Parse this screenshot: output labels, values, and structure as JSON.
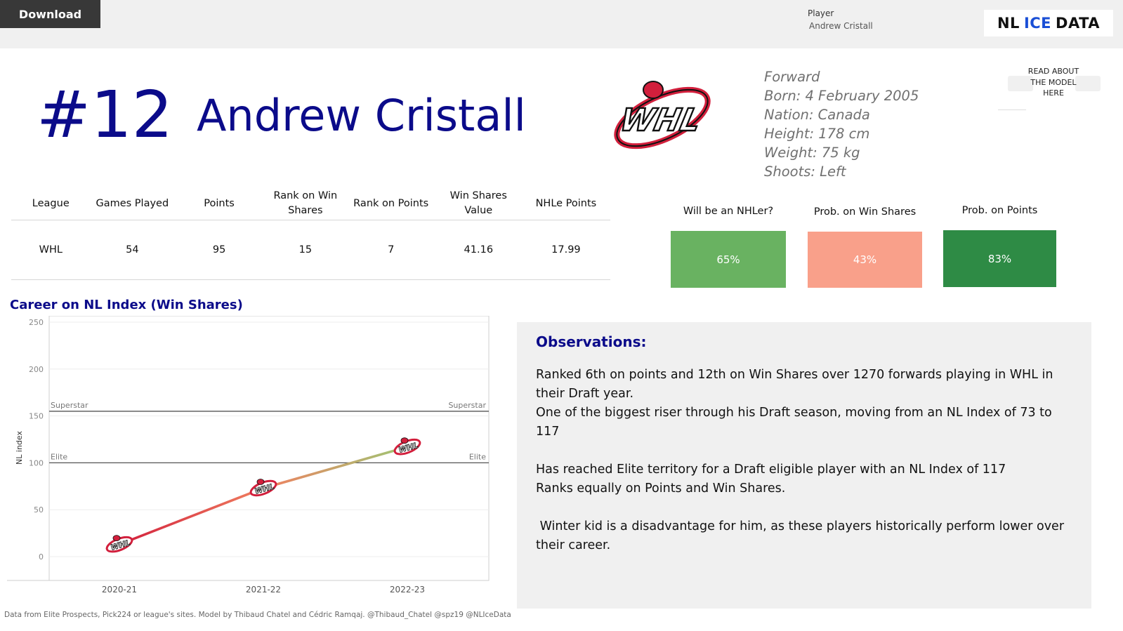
{
  "toolbar": {
    "download_label": "Download"
  },
  "filter": {
    "label": "Player",
    "value": "Andrew Cristall"
  },
  "brand": {
    "part1": "NL",
    "part2": "ICE",
    "part3": "DATA"
  },
  "header": {
    "number": "#12",
    "name": "Andrew Cristall",
    "league_logo": "whl-logo"
  },
  "bio": [
    "Forward",
    "Born: 4 February 2005",
    "Nation: Canada",
    "Height: 178 cm",
    "Weight: 75 kg",
    "Shoots: Left"
  ],
  "model_link": {
    "text": "READ ABOUT THE MODEL HERE"
  },
  "stats": {
    "columns": [
      "League",
      "Games Played",
      "Points",
      "Rank on Win Shares",
      "Rank on Points",
      "Win Shares Value",
      "NHLe Points"
    ],
    "row": [
      "WHL",
      "54",
      "95",
      "15",
      "7",
      "41.16",
      "17.99"
    ]
  },
  "probabilities": [
    {
      "title": "Will be an NHLer?",
      "value": "65%",
      "color": "#69b261"
    },
    {
      "title": "Prob. on Win Shares",
      "value": "43%",
      "color": "#f9a08a"
    },
    {
      "title": "Prob. on Points",
      "value": "83%",
      "color": "#2e8b45"
    }
  ],
  "career_title": "Career on NL Index (Win Shares)",
  "chart_data": {
    "type": "line",
    "title": "Career on NL Index (Win Shares)",
    "ylabel": "NL index",
    "xlabel": "",
    "categories": [
      "2020-21",
      "2021-22",
      "2022-23"
    ],
    "values": [
      13,
      73,
      117
    ],
    "ylim": [
      -12,
      250
    ],
    "yticks": [
      0,
      50,
      100,
      150,
      200,
      250
    ],
    "reference_lines": [
      {
        "label": "Superstar",
        "value": 155
      },
      {
        "label": "Elite",
        "value": 100
      }
    ],
    "grid": true,
    "colors": {
      "start": "#d21f3c",
      "mid": "#f08060",
      "end": "#9dc774"
    }
  },
  "observations": {
    "title": "Observations:",
    "paragraphs": [
      "Ranked 6th on points and 12th on Win Shares over 1270 forwards playing in WHL in their Draft year.",
      "One of the biggest riser through his Draft season, moving from an NL Index of 73 to 117",
      "",
      "Has reached Elite territory for a Draft eligible player with an NL Index of 117",
      "Ranks equally on Points and Win Shares.",
      "",
      " Winter kid is a disadvantage for him, as these players historically perform lower over their career."
    ]
  },
  "footer": "Data from Elite Prospects, Pick224 or league's sites. Model by Thibaud Chatel and Cédric Ramqaj. @Thibaud_Chatel @spz19 @NLIceData"
}
